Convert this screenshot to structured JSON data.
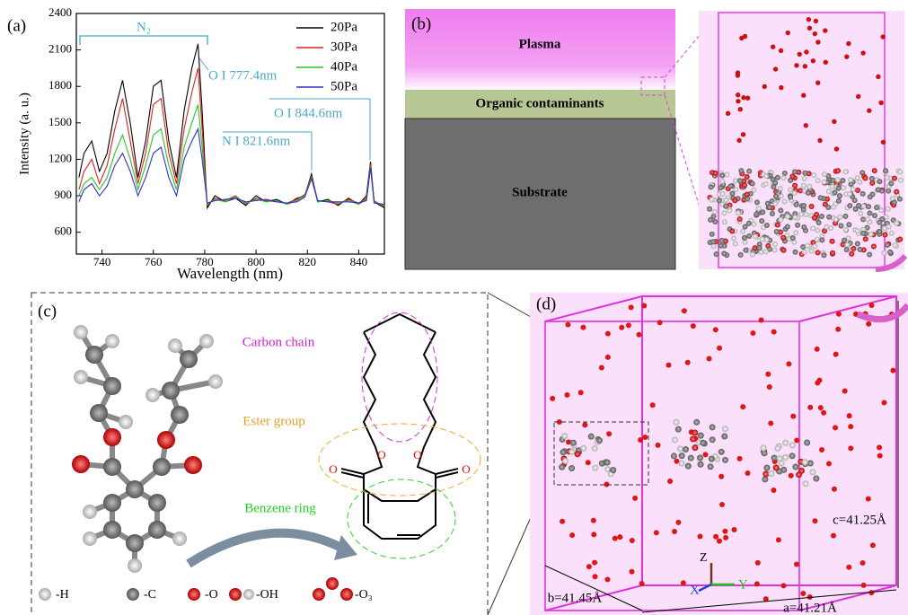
{
  "chart_data": {
    "type": "line",
    "panel_label": "(a)",
    "x_label": "Wavelength (nm)",
    "y_label": "Intensity (a. u.)",
    "x": [
      731,
      733,
      736,
      739,
      742,
      745,
      748,
      751,
      754,
      757,
      760,
      763,
      766,
      769,
      772,
      775,
      777.4,
      779,
      781,
      784,
      788,
      792,
      796,
      800,
      804,
      808,
      812,
      816,
      819,
      821.6,
      824,
      828,
      832,
      836,
      840,
      843,
      844.6,
      846,
      850
    ],
    "series": [
      {
        "name": "20Pa",
        "color": "#000000",
        "values": [
          1050,
          1250,
          1350,
          1100,
          1250,
          1600,
          1850,
          1500,
          1050,
          1350,
          1800,
          1850,
          1350,
          1050,
          1600,
          1950,
          2150,
          1600,
          800,
          900,
          850,
          880,
          820,
          900,
          850,
          870,
          830,
          880,
          900,
          1080,
          850,
          870,
          820,
          880,
          830,
          900,
          1180,
          850,
          800
        ]
      },
      {
        "name": "30Pa",
        "color": "#e0211d",
        "values": [
          950,
          1100,
          1200,
          1000,
          1150,
          1450,
          1700,
          1350,
          1000,
          1250,
          1650,
          1700,
          1250,
          1000,
          1450,
          1750,
          1950,
          1450,
          820,
          880,
          860,
          900,
          830,
          880,
          860,
          850,
          840,
          870,
          910,
          1060,
          860,
          850,
          830,
          870,
          840,
          880,
          1160,
          860,
          810
        ]
      },
      {
        "name": "40Pa",
        "color": "#22c922",
        "values": [
          900,
          1000,
          1050,
          950,
          1050,
          1250,
          1400,
          1200,
          950,
          1150,
          1400,
          1450,
          1150,
          950,
          1300,
          1500,
          1650,
          1300,
          830,
          870,
          850,
          890,
          840,
          870,
          850,
          860,
          830,
          860,
          900,
          1050,
          850,
          860,
          840,
          860,
          830,
          870,
          1140,
          850,
          820
        ]
      },
      {
        "name": "50Pa",
        "color": "#2f2fd0",
        "values": [
          850,
          950,
          1000,
          900,
          980,
          1150,
          1250,
          1100,
          900,
          1050,
          1250,
          1300,
          1050,
          900,
          1200,
          1350,
          1450,
          1200,
          840,
          860,
          870,
          880,
          850,
          860,
          870,
          850,
          840,
          850,
          890,
          1040,
          860,
          850,
          850,
          850,
          840,
          860,
          1130,
          840,
          830
        ]
      }
    ],
    "xlim": [
      730,
      850
    ],
    "xticks": [
      740,
      760,
      780,
      800,
      820,
      840
    ],
    "ylim": [
      420,
      2400
    ],
    "yticks": [
      600,
      900,
      1200,
      1500,
      1800,
      2100,
      2400
    ],
    "legend": "upper right",
    "annotations": [
      "N₂",
      "O I 777.4nm",
      "N I 821.6nm",
      "O I 844.6nm"
    ]
  },
  "panel_b": {
    "label": "(b)",
    "layers": [
      "Plasma",
      "Organic contaminants",
      "Substrate"
    ]
  },
  "panel_c": {
    "label": "(c)",
    "groups": [
      "Carbon chain",
      "Ester group",
      "Benzene ring"
    ],
    "atoms": [
      "O",
      "O",
      "O",
      "O"
    ],
    "legend": [
      "-H",
      "-C",
      "-O",
      "-OH",
      "-O₃"
    ]
  },
  "panel_d": {
    "label": "(d)",
    "axes": [
      "Z",
      "X",
      "Y"
    ],
    "dims": [
      "c=41.25Å",
      "b=41.45Å",
      "a=41.21Å"
    ]
  }
}
